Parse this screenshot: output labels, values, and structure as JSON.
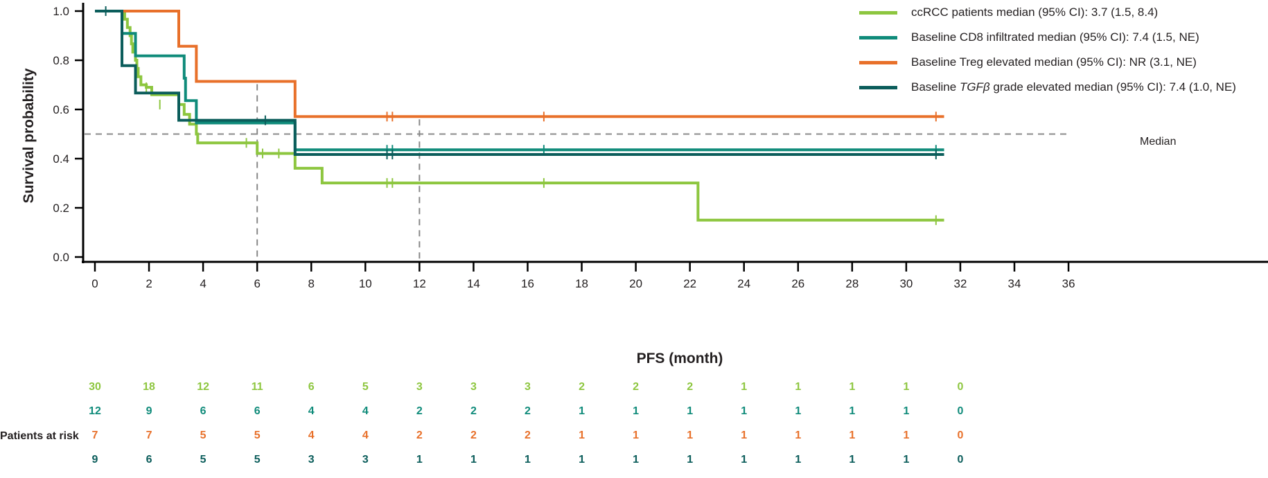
{
  "chart_data": {
    "type": "line",
    "subtype": "kaplan-meier step",
    "title": "",
    "xlabel": "PFS (month)",
    "ylabel": "Survival probability",
    "xlim": [
      0,
      36
    ],
    "ylim": [
      0,
      1.0
    ],
    "x_ticks": [
      0,
      2,
      4,
      6,
      8,
      10,
      12,
      14,
      16,
      18,
      20,
      22,
      24,
      26,
      28,
      30,
      32,
      34,
      36
    ],
    "y_ticks": [
      "0.0",
      "0.2",
      "0.4",
      "0.6",
      "0.8",
      "1.0"
    ],
    "grid": false,
    "legend_position": "top-right",
    "reference_lines": {
      "median_y": 0.5,
      "median_label": "Median",
      "vertical_x": [
        6,
        12
      ]
    },
    "series": [
      {
        "name": "ccRCC patients",
        "legend": "ccRCC patients median (95% CI): 3.7 (1.5, 8.4)",
        "color": "#8dc63f",
        "steps": [
          [
            0,
            1.0
          ],
          [
            1.1,
            0.967
          ],
          [
            1.2,
            0.933
          ],
          [
            1.3,
            0.9
          ],
          [
            1.35,
            0.867
          ],
          [
            1.4,
            0.833
          ],
          [
            1.5,
            0.8
          ],
          [
            1.55,
            0.767
          ],
          [
            1.6,
            0.733
          ],
          [
            1.7,
            0.7
          ],
          [
            1.9,
            0.69
          ],
          [
            2.1,
            0.66
          ],
          [
            3.1,
            0.62
          ],
          [
            3.3,
            0.58
          ],
          [
            3.5,
            0.54
          ],
          [
            3.75,
            0.5
          ],
          [
            3.8,
            0.464
          ],
          [
            6.0,
            0.421
          ],
          [
            7.4,
            0.361
          ],
          [
            8.4,
            0.301
          ],
          [
            22.3,
            0.15
          ],
          [
            31.4,
            0.15
          ]
        ],
        "censored": [
          [
            1.9,
            0.69
          ],
          [
            2.4,
            0.62
          ],
          [
            5.6,
            0.464
          ],
          [
            6.2,
            0.421
          ],
          [
            6.8,
            0.421
          ],
          [
            10.8,
            0.301
          ],
          [
            11.0,
            0.301
          ],
          [
            16.6,
            0.301
          ],
          [
            31.1,
            0.15
          ]
        ]
      },
      {
        "name": "Baseline CD8 infiltrated",
        "legend": "Baseline CD8 infiltrated median (95% CI): 7.4 (1.5, NE)",
        "color": "#0f8b7a",
        "steps": [
          [
            0,
            1.0
          ],
          [
            1.0,
            0.909
          ],
          [
            1.5,
            0.818
          ],
          [
            3.3,
            0.727
          ],
          [
            3.35,
            0.636
          ],
          [
            3.75,
            0.545
          ],
          [
            7.4,
            0.436
          ],
          [
            31.4,
            0.436
          ]
        ],
        "censored": [
          [
            10.8,
            0.436
          ],
          [
            11.0,
            0.436
          ],
          [
            16.6,
            0.436
          ],
          [
            31.1,
            0.436
          ]
        ]
      },
      {
        "name": "Baseline Treg elevated",
        "legend": "Baseline Treg elevated median (95% CI): NR (3.1, NE)",
        "color": "#e8702a",
        "steps": [
          [
            0,
            1.0
          ],
          [
            3.1,
            0.857
          ],
          [
            3.75,
            0.714
          ],
          [
            7.4,
            0.571
          ],
          [
            31.4,
            0.571
          ]
        ],
        "censored": [
          [
            10.8,
            0.571
          ],
          [
            11.0,
            0.571
          ],
          [
            16.6,
            0.571
          ],
          [
            31.1,
            0.571
          ]
        ]
      },
      {
        "name": "Baseline TGFβ grade elevated",
        "legend_prefix": "Baseline ",
        "legend_italic": "TGFβ",
        "legend_suffix": " grade elevated median (95% CI): 7.4 (1.0, NE)",
        "color": "#0b5d5b",
        "steps": [
          [
            0,
            1.0
          ],
          [
            1.0,
            0.778
          ],
          [
            1.5,
            0.667
          ],
          [
            3.1,
            0.556
          ],
          [
            7.4,
            0.417
          ],
          [
            31.4,
            0.417
          ]
        ],
        "censored": [
          [
            0.4,
            1.0
          ],
          [
            6.3,
            0.556
          ],
          [
            10.8,
            0.417
          ],
          [
            11.0,
            0.417
          ],
          [
            31.1,
            0.417
          ]
        ]
      }
    ],
    "risk_table": {
      "label": "Patients at risk",
      "times": [
        0,
        2,
        4,
        6,
        8,
        10,
        12,
        14,
        16,
        18,
        20,
        22,
        24,
        26,
        28,
        30,
        32
      ],
      "rows": [
        {
          "series": "ccRCC patients",
          "color": "#8dc63f",
          "values": [
            30,
            18,
            12,
            11,
            6,
            5,
            3,
            3,
            3,
            2,
            2,
            2,
            1,
            1,
            1,
            1,
            0
          ]
        },
        {
          "series": "Baseline CD8 infiltrated",
          "color": "#0f8b7a",
          "values": [
            12,
            9,
            6,
            6,
            4,
            4,
            2,
            2,
            2,
            1,
            1,
            1,
            1,
            1,
            1,
            1,
            0
          ]
        },
        {
          "series": "Baseline Treg elevated",
          "color": "#e8702a",
          "values": [
            7,
            7,
            5,
            5,
            4,
            4,
            2,
            2,
            2,
            1,
            1,
            1,
            1,
            1,
            1,
            1,
            0
          ]
        },
        {
          "series": "Baseline TGFβ grade elevated",
          "color": "#0b5d5b",
          "values": [
            9,
            6,
            5,
            5,
            3,
            3,
            1,
            1,
            1,
            1,
            1,
            1,
            1,
            1,
            1,
            1,
            0
          ]
        }
      ]
    }
  },
  "legend": {
    "items": [
      {
        "text": "ccRCC patients median (95% CI): 3.7 (1.5, 8.4)",
        "color": "#8dc63f"
      },
      {
        "text": "Baseline CD8 infiltrated median (95% CI): 7.4 (1.5, NE)",
        "color": "#0f8b7a"
      },
      {
        "text": "Baseline Treg elevated median (95% CI): NR (3.1, NE)",
        "color": "#e8702a"
      },
      {
        "prefix": "Baseline ",
        "italic": "TGFβ",
        "suffix": " grade elevated median (95% CI): 7.4 (1.0, NE)",
        "color": "#0b5d5b"
      }
    ]
  },
  "labels": {
    "median": "Median",
    "xlabel": "PFS (month)",
    "ylabel": "Survival probability",
    "risk": "Patients at risk"
  }
}
